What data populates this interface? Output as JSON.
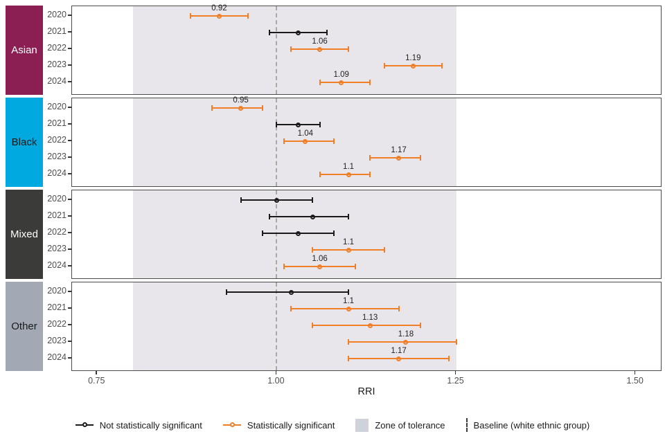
{
  "chart_data": {
    "type": "scatter",
    "subtype": "faceted-forest-pointrange",
    "title": "",
    "xlabel": "RRI",
    "x_ticks": [
      0.75,
      1.0,
      1.25,
      1.5
    ],
    "x_tick_labels": [
      "0.75",
      "1.00",
      "1.25",
      "1.50"
    ],
    "x_domain": [
      0.715,
      1.537
    ],
    "zone_of_tolerance": [
      0.8,
      1.25
    ],
    "baseline_value": 1.0,
    "grid": false,
    "colors": {
      "significant": "#f07e26",
      "not_significant": "#1a1a1a",
      "zone_fill": "#e8e6eb",
      "legend_zone_swatch": "#cfd2da",
      "baseline_dash": "#a8a8a8",
      "panel_border": "#4a4a4a",
      "axis_text": "#4d4d4d"
    },
    "facets": [
      {
        "label": "Asian",
        "strip_color": "#8b1f53",
        "strip_text_color": "#ffffff",
        "rows": [
          {
            "year": "2020",
            "value": 0.92,
            "lo": 0.88,
            "hi": 0.96,
            "significant": true,
            "label": "0.92"
          },
          {
            "year": "2021",
            "value": 1.03,
            "lo": 0.99,
            "hi": 1.07,
            "significant": false,
            "label": ""
          },
          {
            "year": "2022",
            "value": 1.06,
            "lo": 1.02,
            "hi": 1.1,
            "significant": true,
            "label": "1.06"
          },
          {
            "year": "2023",
            "value": 1.19,
            "lo": 1.15,
            "hi": 1.23,
            "significant": true,
            "label": "1.19"
          },
          {
            "year": "2024",
            "value": 1.09,
            "lo": 1.06,
            "hi": 1.13,
            "significant": true,
            "label": "1.09"
          }
        ]
      },
      {
        "label": "Black",
        "strip_color": "#00a9e0",
        "strip_text_color": "#1a1a1a",
        "rows": [
          {
            "year": "2020",
            "value": 0.95,
            "lo": 0.91,
            "hi": 0.98,
            "significant": true,
            "label": "0.95"
          },
          {
            "year": "2021",
            "value": 1.03,
            "lo": 1.0,
            "hi": 1.06,
            "significant": false,
            "label": ""
          },
          {
            "year": "2022",
            "value": 1.04,
            "lo": 1.01,
            "hi": 1.08,
            "significant": true,
            "label": "1.04"
          },
          {
            "year": "2023",
            "value": 1.17,
            "lo": 1.13,
            "hi": 1.2,
            "significant": true,
            "label": "1.17"
          },
          {
            "year": "2024",
            "value": 1.1,
            "lo": 1.06,
            "hi": 1.13,
            "significant": true,
            "label": "1.1"
          }
        ]
      },
      {
        "label": "Mixed",
        "strip_color": "#3b3b3a",
        "strip_text_color": "#ffffff",
        "rows": [
          {
            "year": "2020",
            "value": 1.0,
            "lo": 0.95,
            "hi": 1.05,
            "significant": false,
            "label": ""
          },
          {
            "year": "2021",
            "value": 1.05,
            "lo": 0.99,
            "hi": 1.1,
            "significant": false,
            "label": ""
          },
          {
            "year": "2022",
            "value": 1.03,
            "lo": 0.98,
            "hi": 1.08,
            "significant": false,
            "label": ""
          },
          {
            "year": "2023",
            "value": 1.1,
            "lo": 1.05,
            "hi": 1.15,
            "significant": true,
            "label": "1.1"
          },
          {
            "year": "2024",
            "value": 1.06,
            "lo": 1.01,
            "hi": 1.11,
            "significant": true,
            "label": "1.06"
          }
        ]
      },
      {
        "label": "Other",
        "strip_color": "#a2a9b4",
        "strip_text_color": "#1a1a1a",
        "rows": [
          {
            "year": "2020",
            "value": 1.02,
            "lo": 0.93,
            "hi": 1.1,
            "significant": false,
            "label": ""
          },
          {
            "year": "2021",
            "value": 1.1,
            "lo": 1.02,
            "hi": 1.17,
            "significant": true,
            "label": "1.1"
          },
          {
            "year": "2022",
            "value": 1.13,
            "lo": 1.05,
            "hi": 1.2,
            "significant": true,
            "label": "1.13"
          },
          {
            "year": "2023",
            "value": 1.18,
            "lo": 1.1,
            "hi": 1.25,
            "significant": true,
            "label": "1.18"
          },
          {
            "year": "2024",
            "value": 1.17,
            "lo": 1.1,
            "hi": 1.24,
            "significant": true,
            "label": "1.17"
          }
        ]
      }
    ],
    "legend": [
      {
        "type": "pointrange",
        "color": "#1a1a1a",
        "label": "Not statistically significant"
      },
      {
        "type": "pointrange",
        "color": "#f07e26",
        "label": "Statistically significant"
      },
      {
        "type": "swatch",
        "color": "#cfd2da",
        "label": "Zone of tolerance"
      },
      {
        "type": "dashed",
        "color": "#3c3c3c",
        "label": "Baseline (white ethnic group)"
      }
    ]
  }
}
